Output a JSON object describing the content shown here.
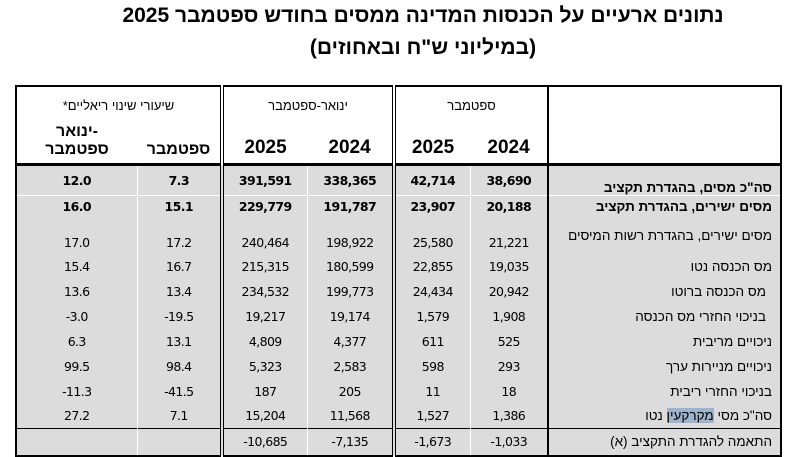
{
  "title_line1": "נתונים ארעיים על הכנסות המדינה ממסים בחודש ספטמבר 2025",
  "title_line2": "(במיליוני ש\"ח ובאחוזים)",
  "header": {
    "group_real_change": "שיעורי שינוי ריאליים*",
    "group_jan_sep": "ינואר-ספטמבר",
    "group_sep": "ספטמבר",
    "col_real_jan_sep_1": "ינואר-",
    "col_real_jan_sep_2": "ספטמבר",
    "col_real_sep": "ספטמבר",
    "col_js_2025": "2025",
    "col_js_2024": "2024",
    "col_s_2025": "2025",
    "col_s_2024": "2024"
  },
  "rows": [
    {
      "label": "סה\"כ מסים, בהגדרת תקציב",
      "real_js": "12.0",
      "real_s": "7.3",
      "js2025": "391,591",
      "js2024": "338,365",
      "s2025": "42,714",
      "s2024": "38,690"
    },
    {
      "label": "מסים ישירים, בהגדרת תקציב",
      "real_js": "16.0",
      "real_s": "15.1",
      "js2025": "229,779",
      "js2024": "191,787",
      "s2025": "23,907",
      "s2024": "20,188"
    },
    {
      "label": "מסים ישירים, בהגדרת רשות המיסים",
      "real_js": "17.0",
      "real_s": "17.2",
      "js2025": "240,464",
      "js2024": "198,922",
      "s2025": "25,580",
      "s2024": "21,221"
    },
    {
      "label": "מס הכנסה נטו",
      "real_js": "15.4",
      "real_s": "16.7",
      "js2025": "215,315",
      "js2024": "180,599",
      "s2025": "22,855",
      "s2024": "19,035"
    },
    {
      "label": "מס הכנסה ברוטו",
      "real_js": "13.6",
      "real_s": "13.4",
      "js2025": "234,532",
      "js2024": "199,773",
      "s2025": "24,434",
      "s2024": "20,942"
    },
    {
      "label": "בניכוי החזרי מס הכנסה",
      "real_js": "-3.0",
      "real_s": "-19.5",
      "js2025": "19,217",
      "js2024": "19,174",
      "s2025": "1,579",
      "s2024": "1,908"
    },
    {
      "label": "ניכויים מריבית",
      "real_js": "6.3",
      "real_s": "13.1",
      "js2025": "4,809",
      "js2024": "4,377",
      "s2025": "611",
      "s2024": "525"
    },
    {
      "label": "ניכויים מניירות ערך",
      "real_js": "99.5",
      "real_s": "98.4",
      "js2025": "5,323",
      "js2024": "2,583",
      "s2025": "598",
      "s2024": "293"
    },
    {
      "label": "בניכוי החזרי ריבית",
      "real_js": "-11.3",
      "real_s": "-41.5",
      "js2025": "187",
      "js2024": "205",
      "s2025": "11",
      "s2024": "18"
    },
    {
      "label_a": "סה\"כ מסי ",
      "label_hl": "מקרקעין",
      "label_b": " נטו",
      "real_js": "27.2",
      "real_s": "7.1",
      "js2025": "15,204",
      "js2024": "11,568",
      "s2025": "1,527",
      "s2024": "1,386"
    },
    {
      "label": "התאמה להגדרת התקציב (א)",
      "real_js": "",
      "real_s": "",
      "js2025": "-10,685",
      "js2024": "-7,135",
      "s2025": "-1,673",
      "s2024": "-1,033"
    }
  ]
}
